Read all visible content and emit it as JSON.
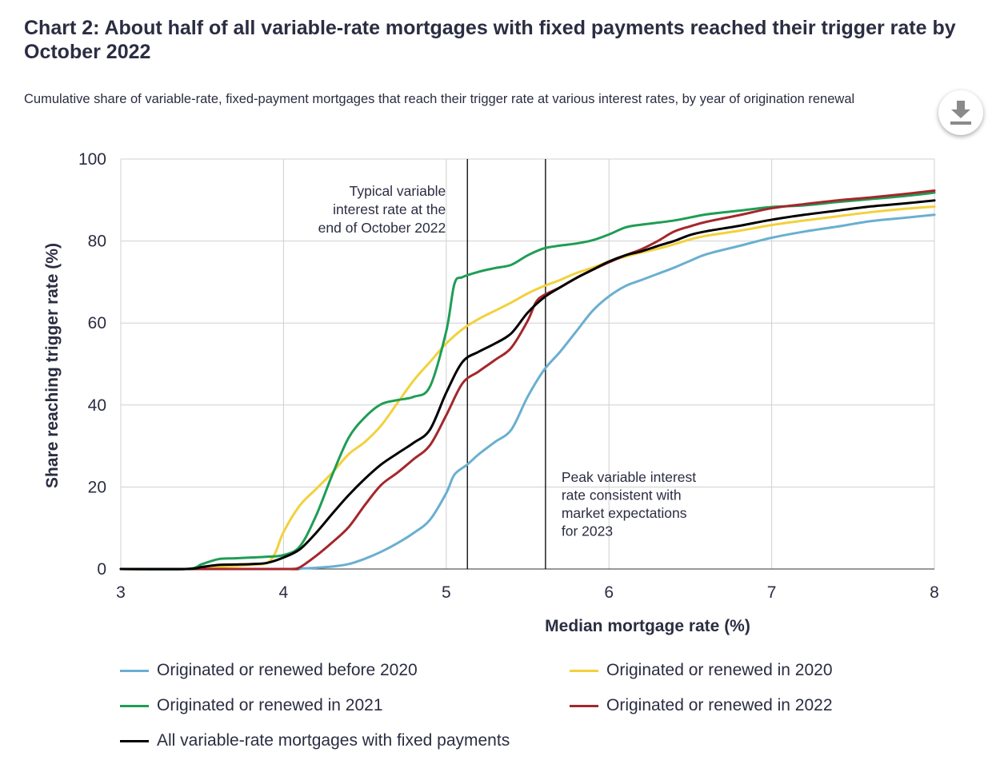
{
  "page": {
    "title": "Chart 2: About half of all variable-rate mortgages with fixed payments reached their trigger rate by October 2022",
    "subtitle": "Cumulative share of variable-rate, fixed-payment mortgages that reach their trigger rate at various interest rates, by year of origination renewal",
    "download_icon": "download-icon"
  },
  "chart_data": {
    "type": "line",
    "xlabel": "Median mortgage rate (%)",
    "ylabel": "Share reaching trigger rate (%)",
    "xlim": [
      3,
      8
    ],
    "ylim": [
      0,
      100
    ],
    "xticks": [
      "3",
      "4",
      "5",
      "6",
      "7",
      "8"
    ],
    "yticks": [
      "0",
      "20",
      "40",
      "60",
      "80",
      "100"
    ],
    "grid": true,
    "legend_position": "bottom",
    "annotations": [
      {
        "x": 5.13,
        "lines": [
          "Typical variable",
          "interest rate at the",
          "end of October 2022"
        ]
      },
      {
        "x": 5.61,
        "lines": [
          "Peak variable interest",
          "rate consistent with",
          "market expectations",
          "for 2023"
        ]
      }
    ],
    "series": [
      {
        "name": "Originated or renewed before 2020",
        "color": "#6aafd0",
        "points": [
          [
            3,
            0
          ],
          [
            4,
            0
          ],
          [
            4.1,
            0.1
          ],
          [
            4.2,
            0.3
          ],
          [
            4.3,
            0.6
          ],
          [
            4.4,
            1.2
          ],
          [
            4.5,
            2.5
          ],
          [
            4.6,
            4.2
          ],
          [
            4.7,
            6.3
          ],
          [
            4.8,
            8.8
          ],
          [
            4.9,
            12
          ],
          [
            5.0,
            18.5
          ],
          [
            5.05,
            23
          ],
          [
            5.13,
            25.5
          ],
          [
            5.2,
            28
          ],
          [
            5.3,
            31
          ],
          [
            5.4,
            34
          ],
          [
            5.5,
            42
          ],
          [
            5.6,
            48.5
          ],
          [
            5.7,
            53
          ],
          [
            5.8,
            58
          ],
          [
            5.9,
            63
          ],
          [
            6.0,
            66.5
          ],
          [
            6.1,
            69
          ],
          [
            6.2,
            70.5
          ],
          [
            6.3,
            72
          ],
          [
            6.4,
            73.5
          ],
          [
            6.5,
            75.2
          ],
          [
            6.6,
            76.8
          ],
          [
            6.8,
            78.8
          ],
          [
            7.0,
            80.8
          ],
          [
            7.2,
            82.3
          ],
          [
            7.4,
            83.5
          ],
          [
            7.6,
            84.8
          ],
          [
            7.8,
            85.6
          ],
          [
            8.0,
            86.4
          ]
        ]
      },
      {
        "name": "Originated or renewed in 2020",
        "color": "#f2d13c",
        "points": [
          [
            3,
            0
          ],
          [
            3.4,
            0
          ],
          [
            3.6,
            0.5
          ],
          [
            3.8,
            1.0
          ],
          [
            3.9,
            1.5
          ],
          [
            3.95,
            4
          ],
          [
            4.0,
            9
          ],
          [
            4.1,
            15.5
          ],
          [
            4.2,
            19.5
          ],
          [
            4.3,
            23.5
          ],
          [
            4.4,
            28
          ],
          [
            4.5,
            31
          ],
          [
            4.6,
            35
          ],
          [
            4.7,
            40.5
          ],
          [
            4.8,
            46
          ],
          [
            4.9,
            50.5
          ],
          [
            5.0,
            55
          ],
          [
            5.1,
            58.5
          ],
          [
            5.2,
            61
          ],
          [
            5.3,
            63
          ],
          [
            5.4,
            65
          ],
          [
            5.5,
            67.2
          ],
          [
            5.6,
            69
          ],
          [
            5.7,
            70.5
          ],
          [
            5.8,
            72.2
          ],
          [
            5.9,
            73.5
          ],
          [
            6.0,
            75
          ],
          [
            6.1,
            76.2
          ],
          [
            6.2,
            77.2
          ],
          [
            6.3,
            78.1
          ],
          [
            6.4,
            79.2
          ],
          [
            6.5,
            80.4
          ],
          [
            6.6,
            81.3
          ],
          [
            6.8,
            82.5
          ],
          [
            7.0,
            83.9
          ],
          [
            7.2,
            85
          ],
          [
            7.4,
            86
          ],
          [
            7.6,
            87
          ],
          [
            7.8,
            87.8
          ],
          [
            8.0,
            88.4
          ]
        ]
      },
      {
        "name": "Originated or renewed in 2021",
        "color": "#1f9d55",
        "points": [
          [
            3,
            0
          ],
          [
            3.4,
            0
          ],
          [
            3.5,
            1.2
          ],
          [
            3.6,
            2.4
          ],
          [
            3.7,
            2.6
          ],
          [
            3.8,
            2.8
          ],
          [
            3.9,
            3.0
          ],
          [
            4.0,
            3.4
          ],
          [
            4.1,
            5.5
          ],
          [
            4.2,
            13
          ],
          [
            4.3,
            23
          ],
          [
            4.4,
            32
          ],
          [
            4.5,
            37
          ],
          [
            4.6,
            40.2
          ],
          [
            4.7,
            41.2
          ],
          [
            4.8,
            42
          ],
          [
            4.9,
            44.5
          ],
          [
            5.0,
            58
          ],
          [
            5.05,
            69.5
          ],
          [
            5.1,
            71.2
          ],
          [
            5.2,
            72.5
          ],
          [
            5.3,
            73.4
          ],
          [
            5.4,
            74.2
          ],
          [
            5.5,
            76.5
          ],
          [
            5.6,
            78.2
          ],
          [
            5.7,
            78.9
          ],
          [
            5.8,
            79.4
          ],
          [
            5.9,
            80.2
          ],
          [
            6.0,
            81.6
          ],
          [
            6.1,
            83.3
          ],
          [
            6.2,
            84
          ],
          [
            6.4,
            85
          ],
          [
            6.6,
            86.5
          ],
          [
            6.8,
            87.4
          ],
          [
            7.0,
            88.3
          ],
          [
            7.2,
            88.7
          ],
          [
            7.4,
            89.5
          ],
          [
            7.6,
            90.2
          ],
          [
            7.8,
            90.9
          ],
          [
            8.0,
            91.8
          ]
        ]
      },
      {
        "name": "Originated or renewed in 2022",
        "color": "#a4272c",
        "points": [
          [
            3,
            0
          ],
          [
            4.0,
            0
          ],
          [
            4.05,
            0
          ],
          [
            4.1,
            0.4
          ],
          [
            4.2,
            3.2
          ],
          [
            4.3,
            6.5
          ],
          [
            4.4,
            10.2
          ],
          [
            4.5,
            15.6
          ],
          [
            4.6,
            20.5
          ],
          [
            4.7,
            23.5
          ],
          [
            4.8,
            26.8
          ],
          [
            4.9,
            30.2
          ],
          [
            5.0,
            37.5
          ],
          [
            5.1,
            45.3
          ],
          [
            5.2,
            48.2
          ],
          [
            5.3,
            51
          ],
          [
            5.4,
            54
          ],
          [
            5.5,
            60.5
          ],
          [
            5.55,
            65
          ],
          [
            5.6,
            66.8
          ],
          [
            5.7,
            68.7
          ],
          [
            5.8,
            71
          ],
          [
            5.9,
            73
          ],
          [
            6.0,
            74.8
          ],
          [
            6.1,
            76.5
          ],
          [
            6.2,
            78
          ],
          [
            6.3,
            80
          ],
          [
            6.4,
            82.3
          ],
          [
            6.5,
            83.6
          ],
          [
            6.6,
            84.7
          ],
          [
            6.8,
            86.3
          ],
          [
            7.0,
            88
          ],
          [
            7.2,
            89
          ],
          [
            7.4,
            89.9
          ],
          [
            7.6,
            90.6
          ],
          [
            7.8,
            91.4
          ],
          [
            8.0,
            92.3
          ]
        ]
      },
      {
        "name": "All variable-rate mortgages with fixed payments",
        "color": "#000000",
        "points": [
          [
            3,
            0
          ],
          [
            3.4,
            0
          ],
          [
            3.5,
            0.5
          ],
          [
            3.6,
            1.0
          ],
          [
            3.7,
            1.1
          ],
          [
            3.8,
            1.2
          ],
          [
            3.9,
            1.5
          ],
          [
            4.0,
            2.8
          ],
          [
            4.1,
            4.8
          ],
          [
            4.2,
            8.8
          ],
          [
            4.3,
            13.5
          ],
          [
            4.4,
            18
          ],
          [
            4.5,
            22
          ],
          [
            4.6,
            25.5
          ],
          [
            4.7,
            28.2
          ],
          [
            4.8,
            30.8
          ],
          [
            4.9,
            34
          ],
          [
            5.0,
            43
          ],
          [
            5.1,
            50.5
          ],
          [
            5.2,
            53
          ],
          [
            5.3,
            55
          ],
          [
            5.4,
            57.5
          ],
          [
            5.5,
            62.5
          ],
          [
            5.6,
            66.2
          ],
          [
            5.7,
            68.7
          ],
          [
            5.8,
            71
          ],
          [
            5.9,
            73
          ],
          [
            6.0,
            75
          ],
          [
            6.1,
            76.5
          ],
          [
            6.2,
            77.5
          ],
          [
            6.3,
            78.8
          ],
          [
            6.4,
            80
          ],
          [
            6.5,
            81.5
          ],
          [
            6.6,
            82.4
          ],
          [
            6.8,
            83.7
          ],
          [
            7.0,
            85.2
          ],
          [
            7.2,
            86.4
          ],
          [
            7.4,
            87.4
          ],
          [
            7.6,
            88.4
          ],
          [
            7.8,
            89.1
          ],
          [
            8.0,
            89.9
          ]
        ]
      }
    ]
  }
}
